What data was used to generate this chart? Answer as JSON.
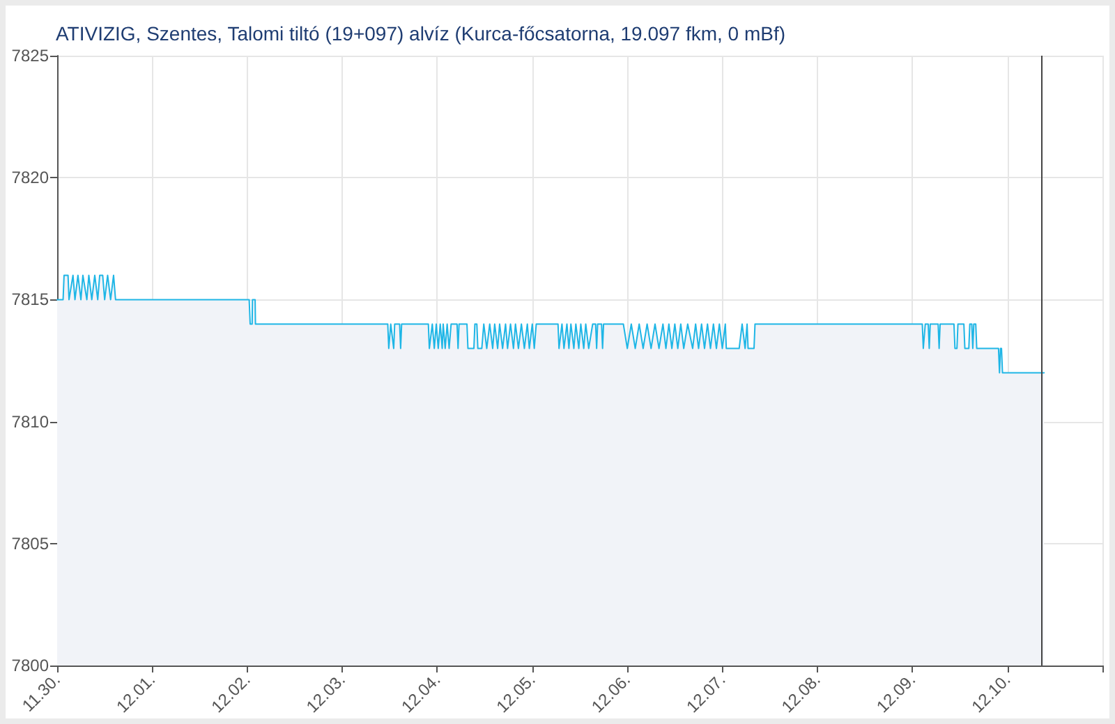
{
  "chart_data": {
    "type": "area",
    "title": "ATIVIZIG, Szentes, Talomi tiltó (19+097) alvíz (Kurca-főcsatorna, 19.097 fkm, 0 mBf)",
    "x": [
      "--11-30T00:00",
      "--11-30T01:30",
      "--11-30T01:45",
      "--11-30T02:45",
      "--11-30T03:00",
      "--11-30T04:00",
      "--11-30T04:30",
      "--11-30T05:15",
      "--11-30T06:00",
      "--11-30T06:30",
      "--11-30T07:30",
      "--11-30T08:00",
      "--11-30T08:45",
      "--11-30T09:30",
      "--11-30T10:15",
      "--11-30T10:45",
      "--11-30T11:30",
      "--11-30T12:00",
      "--11-30T12:45",
      "--11-30T13:30",
      "--11-30T14:15",
      "--11-30T14:45",
      "--12-02T00:30",
      "--12-02T00:45",
      "--12-02T01:15",
      "--12-02T01:20",
      "--12-02T02:00",
      "--12-02T02:05",
      "--12-03T11:30",
      "--12-03T11:45",
      "--12-03T12:15",
      "--12-03T13:00",
      "--12-03T13:15",
      "--12-03T14:30",
      "--12-03T14:45",
      "--12-03T15:00",
      "--12-03T21:45",
      "--12-03T22:00",
      "--12-03T22:45",
      "--12-03T23:15",
      "--12-03T23:45",
      "--12-04T00:15",
      "--12-04T00:45",
      "--12-04T01:15",
      "--12-04T01:30",
      "--12-04T02:00",
      "--12-04T02:30",
      "--12-04T03:00",
      "--12-04T03:30",
      "--12-04T05:00",
      "--12-04T05:15",
      "--12-04T05:30",
      "--12-04T07:30",
      "--12-04T07:45",
      "--12-04T09:15",
      "--12-04T09:30",
      "--12-04T10:00",
      "--12-04T10:15",
      "--12-04T11:15",
      "--12-04T11:45",
      "--12-04T12:30",
      "--12-04T13:15",
      "--12-04T14:00",
      "--12-04T14:30",
      "--12-04T15:15",
      "--12-04T15:45",
      "--12-04T16:30",
      "--12-04T17:15",
      "--12-04T17:45",
      "--12-04T18:30",
      "--12-04T19:15",
      "--12-04T19:45",
      "--12-04T20:30",
      "--12-04T21:15",
      "--12-04T22:00",
      "--12-04T22:45",
      "--12-04T23:15",
      "--12-05T00:00",
      "--12-05T00:30",
      "--12-05T01:00",
      "--12-05T06:30",
      "--12-05T06:45",
      "--12-05T07:30",
      "--12-05T08:00",
      "--12-05T08:45",
      "--12-05T09:15",
      "--12-05T09:45",
      "--12-05T10:30",
      "--12-05T11:00",
      "--12-05T11:45",
      "--12-05T12:15",
      "--12-05T13:00",
      "--12-05T13:30",
      "--12-05T14:15",
      "--12-05T15:15",
      "--12-05T16:00",
      "--12-05T16:15",
      "--12-05T16:30",
      "--12-05T17:30",
      "--12-05T17:45",
      "--12-05T18:00",
      "--12-05T23:00",
      "--12-06T00:00",
      "--12-06T01:00",
      "--12-06T02:00",
      "--12-06T03:00",
      "--12-06T04:00",
      "--12-06T05:00",
      "--12-06T06:00",
      "--12-06T07:00",
      "--12-06T08:00",
      "--12-06T09:00",
      "--12-06T09:45",
      "--12-06T10:30",
      "--12-06T11:15",
      "--12-06T12:00",
      "--12-06T12:45",
      "--12-06T13:30",
      "--12-06T14:15",
      "--12-06T15:15",
      "--12-06T16:30",
      "--12-06T17:15",
      "--12-06T18:00",
      "--12-06T18:45",
      "--12-06T19:30",
      "--12-06T20:15",
      "--12-06T21:00",
      "--12-06T21:45",
      "--12-06T22:30",
      "--12-06T23:15",
      "--12-07T00:00",
      "--12-07T00:45",
      "--12-07T01:00",
      "--12-07T04:15",
      "--12-07T05:00",
      "--12-07T05:45",
      "--12-07T06:15",
      "--12-07T06:30",
      "--12-07T08:00",
      "--12-07T08:15",
      "--12-09T02:30",
      "--12-09T02:45",
      "--12-09T03:15",
      "--12-09T04:00",
      "--12-09T04:15",
      "--12-09T04:30",
      "--12-09T06:30",
      "--12-09T06:45",
      "--12-09T07:00",
      "--12-09T10:30",
      "--12-09T10:45",
      "--12-09T11:15",
      "--12-09T11:30",
      "--12-09T13:00",
      "--12-09T13:15",
      "--12-09T14:15",
      "--12-09T14:30",
      "--12-09T15:00",
      "--12-09T15:15",
      "--12-09T15:30",
      "--12-09T16:00",
      "--12-09T16:15",
      "--12-09T21:45",
      "--12-09T22:00",
      "--12-09T22:15",
      "--12-09T22:30",
      "--12-09T22:45",
      "--12-10T09:15"
    ],
    "values": [
      7815,
      7815,
      7816,
      7816,
      7815,
      7816,
      7815,
      7816,
      7815,
      7816,
      7815,
      7816,
      7815,
      7816,
      7815,
      7816,
      7816,
      7815,
      7816,
      7815,
      7816,
      7815,
      7815,
      7814,
      7814,
      7815,
      7815,
      7814,
      7814,
      7813,
      7814,
      7813,
      7814,
      7814,
      7813,
      7814,
      7814,
      7813,
      7814,
      7813,
      7814,
      7813,
      7814,
      7813,
      7814,
      7813,
      7814,
      7813,
      7814,
      7814,
      7813,
      7814,
      7814,
      7813,
      7813,
      7814,
      7814,
      7813,
      7813,
      7814,
      7813,
      7814,
      7813,
      7814,
      7813,
      7814,
      7813,
      7814,
      7813,
      7814,
      7813,
      7814,
      7813,
      7814,
      7813,
      7814,
      7813,
      7814,
      7813,
      7814,
      7814,
      7813,
      7814,
      7813,
      7814,
      7813,
      7814,
      7813,
      7814,
      7813,
      7814,
      7813,
      7814,
      7813,
      7814,
      7814,
      7813,
      7814,
      7814,
      7813,
      7814,
      7814,
      7813,
      7814,
      7813,
      7814,
      7813,
      7814,
      7813,
      7814,
      7813,
      7814,
      7813,
      7814,
      7813,
      7814,
      7813,
      7814,
      7813,
      7814,
      7813,
      7814,
      7813,
      7814,
      7813,
      7814,
      7813,
      7814,
      7813,
      7814,
      7813,
      7814,
      7813,
      7813,
      7814,
      7813,
      7814,
      7813,
      7813,
      7814,
      7814,
      7813,
      7814,
      7814,
      7813,
      7814,
      7814,
      7813,
      7814,
      7814,
      7813,
      7813,
      7814,
      7814,
      7813,
      7813,
      7814,
      7814,
      7813,
      7814,
      7814,
      7813,
      7813,
      7812,
      7813,
      7813,
      7812,
      7812
    ],
    "color": "#1fb6e6",
    "xlim": [
      "--11-30",
      "--12-11"
    ],
    "xticks": [
      {
        "value": "--11-30",
        "label": "11.30."
      },
      {
        "value": "--12-01",
        "label": "12.01."
      },
      {
        "value": "--12-02",
        "label": "12.02."
      },
      {
        "value": "--12-03",
        "label": "12.03."
      },
      {
        "value": "--12-04",
        "label": "12.04."
      },
      {
        "value": "--12-05",
        "label": "12.05."
      },
      {
        "value": "--12-06",
        "label": "12.06."
      },
      {
        "value": "--12-07",
        "label": "12.07."
      },
      {
        "value": "--12-08",
        "label": "12.08."
      },
      {
        "value": "--12-09",
        "label": "12.09."
      },
      {
        "value": "--12-10",
        "label": "12.10."
      },
      {
        "value": "--12-11",
        "label": null
      }
    ],
    "ylim": [
      7800,
      7825
    ],
    "yticks": [
      7800,
      7805,
      7810,
      7815,
      7820,
      7825
    ],
    "ref_lines": [
      {
        "axis": "x",
        "value": "--12-10T08:30",
        "color": "#444444"
      }
    ],
    "grid": true
  }
}
